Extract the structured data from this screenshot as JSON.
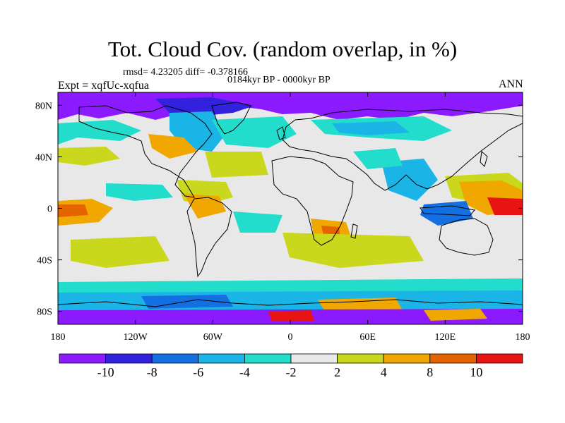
{
  "title": "Tot. Cloud Cov. (random overlap, in %)",
  "stats": "rmsd= 4.23205 diff= -0.378166",
  "period": "0184kyr BP - 0000kyr BP",
  "experiment": "Expt = xqfUc-xqfua",
  "season": "ANN",
  "map": {
    "projection": "cylindrical-equidistant",
    "lon_range": [
      -180,
      180
    ],
    "lat_range": [
      -90,
      90
    ],
    "x_ticks": [
      {
        "value": -180,
        "label": "180"
      },
      {
        "value": -120,
        "label": "120W"
      },
      {
        "value": -60,
        "label": "60W"
      },
      {
        "value": 0,
        "label": "0"
      },
      {
        "value": 60,
        "label": "60E"
      },
      {
        "value": 120,
        "label": "120E"
      },
      {
        "value": 180,
        "label": "180"
      }
    ],
    "y_ticks": [
      {
        "value": 80,
        "label": "80N"
      },
      {
        "value": 40,
        "label": "40N"
      },
      {
        "value": 0,
        "label": "0"
      },
      {
        "value": -40,
        "label": "40S"
      },
      {
        "value": -80,
        "label": "80S"
      }
    ]
  },
  "colorbar": {
    "colors": [
      "#8c1aff",
      "#3322dd",
      "#1470e0",
      "#1ab4e6",
      "#22ddcc",
      "#e8e8e8",
      "#c9d81c",
      "#f0a800",
      "#e66400",
      "#e81414"
    ],
    "labels": [
      "-10",
      "-8",
      "-6",
      "-4",
      "-2",
      "2",
      "4",
      "8",
      "10"
    ]
  }
}
